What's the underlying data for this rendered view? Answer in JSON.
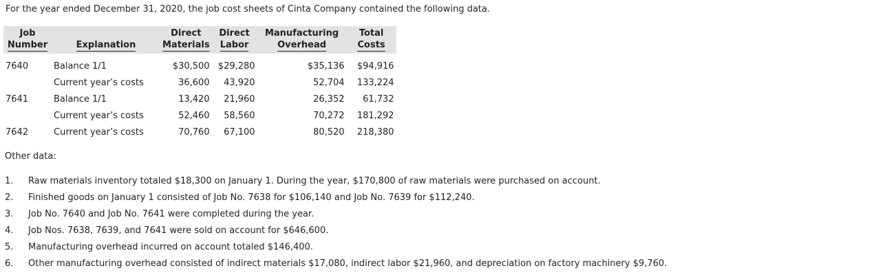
{
  "intro": "For the year ended December 31, 2020, the job cost sheets of Cinta Company contained the following data.",
  "table": {
    "headers": {
      "job_line1": "Job",
      "job_line2": "Number",
      "explanation": "Explanation",
      "dm_line1": "Direct",
      "dm_line2": "Materials",
      "dl_line1": "Direct",
      "dl_line2": "Labor",
      "mo_line1": "Manufacturing",
      "mo_line2": "Overhead",
      "tc_line1": "Total",
      "tc_line2": "Costs"
    },
    "rows": [
      {
        "job": "7640",
        "explanation": "Balance 1/1",
        "direct_materials": "$30,500",
        "direct_labor": "$29,280",
        "overhead": "$35,136",
        "total": "$94,916"
      },
      {
        "job": "",
        "explanation": "Current year’s costs",
        "direct_materials": "36,600",
        "direct_labor": "43,920",
        "overhead": "52,704",
        "total": "133,224"
      },
      {
        "job": "7641",
        "explanation": "Balance 1/1",
        "direct_materials": "13,420",
        "direct_labor": "21,960",
        "overhead": "26,352",
        "total": "61,732"
      },
      {
        "job": "",
        "explanation": "Current year’s costs",
        "direct_materials": "52,460",
        "direct_labor": "58,560",
        "overhead": "70,272",
        "total": "181,292"
      },
      {
        "job": "7642",
        "explanation": "Current year’s costs",
        "direct_materials": "70,760",
        "direct_labor": "67,100",
        "overhead": "80,520",
        "total": "218,380"
      }
    ]
  },
  "other_data_label": "Other data:",
  "notes": [
    {
      "num": "1.",
      "text": "Raw materials inventory totaled $18,300 on January 1. During the year, $170,800 of raw materials were purchased on account."
    },
    {
      "num": "2.",
      "text": "Finished goods on January 1 consisted of Job No. 7638 for $106,140 and Job No. 7639 for $112,240."
    },
    {
      "num": "3.",
      "text": "Job No. 7640 and Job No. 7641 were completed during the year."
    },
    {
      "num": "4.",
      "text": "Job Nos. 7638, 7639, and 7641 were sold on account for $646,600."
    },
    {
      "num": "5.",
      "text": "Manufacturing overhead incurred on account totaled $146,400."
    },
    {
      "num": "6.",
      "text": "Other manufacturing overhead consisted of indirect materials $17,080, indirect labor $21,960, and depreciation on factory machinery $9,760."
    }
  ]
}
